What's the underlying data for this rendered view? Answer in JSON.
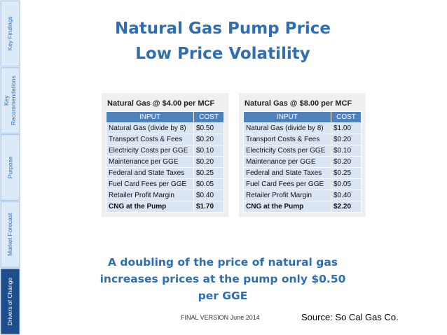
{
  "sidebar": {
    "tabs": [
      [
        "Key Findings"
      ],
      [
        "Key",
        "Recommendations"
      ],
      [
        "Purpose"
      ],
      [
        "Market Forecast"
      ],
      [
        "Drivers of Change"
      ]
    ]
  },
  "header": {
    "title": [
      "Natural Gas Pump Price",
      "Low Price Volatility"
    ]
  },
  "tables": [
    {
      "caption": "Natural Gas @ $4.00 per MCF",
      "columns": [
        "INPUT",
        "COST"
      ],
      "rows": [
        [
          "Natural Gas (divide by 8)",
          "$0.50"
        ],
        [
          "Transport Costs & Fees",
          "$0.20"
        ],
        [
          "Electricity Costs per GGE",
          "$0.10"
        ],
        [
          "Maintenance per GGE",
          "$0.20"
        ],
        [
          "Federal and State Taxes",
          "$0.25"
        ],
        [
          "Fuel Card Fees per GGE",
          "$0.05"
        ],
        [
          "Retailer Profit Margin",
          "$0.40"
        ],
        [
          "CNG at the Pump",
          "$1.70"
        ]
      ]
    },
    {
      "caption": "Natural Gas @ $8.00 per MCF",
      "columns": [
        "INPUT",
        "COST"
      ],
      "rows": [
        [
          "Natural Gas (divide by 8)",
          "$1.00"
        ],
        [
          "Transport Costs & Fees",
          "$0.20"
        ],
        [
          "Electricity Costs per GGE",
          "$0.10"
        ],
        [
          "Maintenance per GGE",
          "$0.20"
        ],
        [
          "Federal and State Taxes",
          "$0.25"
        ],
        [
          "Fuel Card Fees per GGE",
          "$0.05"
        ],
        [
          "Retailer Profit Margin",
          "$0.40"
        ],
        [
          "CNG at the Pump",
          "$2.20"
        ]
      ]
    }
  ],
  "summary": [
    "A doubling of the price of natural gas",
    "increases prices at the pump only $0.50",
    "per GGE"
  ],
  "footer": {
    "version": "FINAL VERSION June 2014",
    "source": "Source: So Cal Gas Co."
  }
}
